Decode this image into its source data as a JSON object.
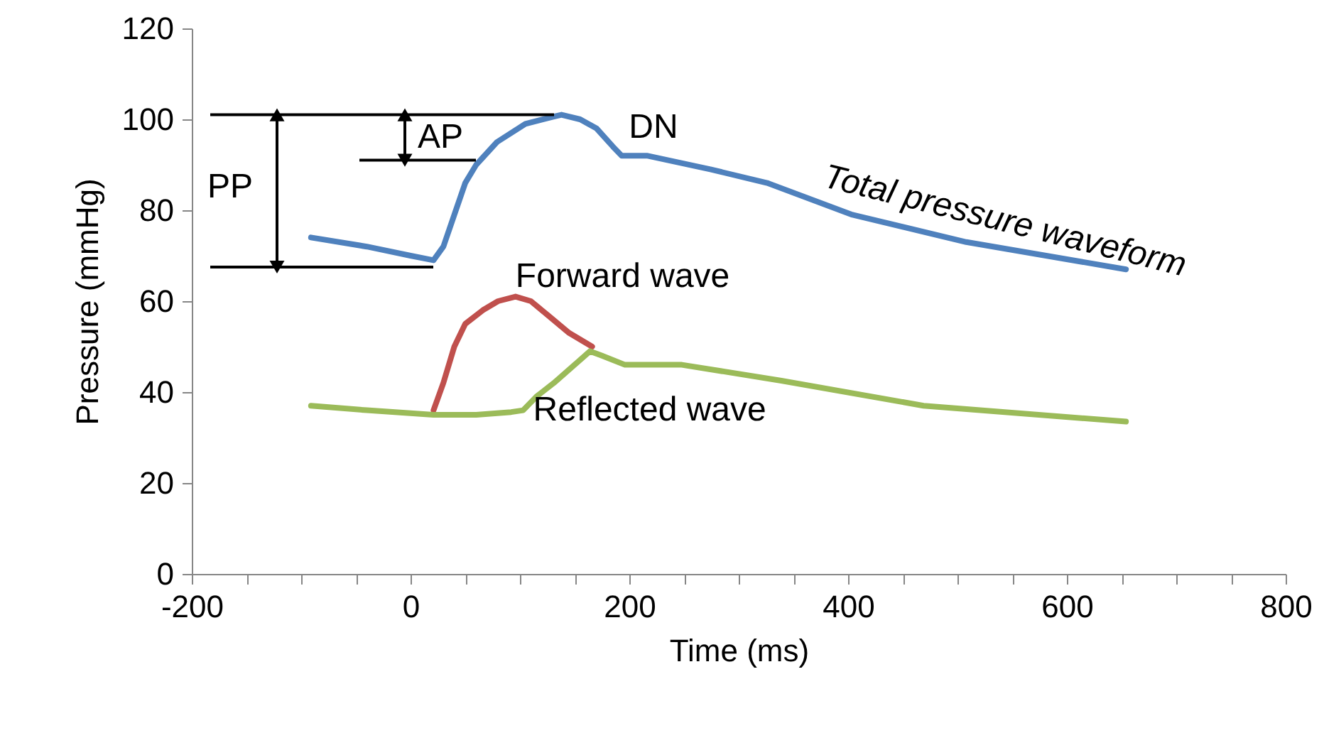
{
  "chart_data": {
    "type": "line",
    "xlabel": "Time (ms)",
    "ylabel": "Pressure (mmHg)",
    "xlim": [
      -200,
      800
    ],
    "ylim": [
      0,
      120
    ],
    "xticks": [
      -200,
      {
        "value": -150,
        "label": null
      },
      {
        "value": -100,
        "label": null
      },
      {
        "value": -50,
        "label": null
      },
      0,
      {
        "value": 50,
        "label": null
      },
      {
        "value": 100,
        "label": null
      },
      {
        "value": 150,
        "label": null
      },
      200,
      {
        "value": 250,
        "label": null
      },
      {
        "value": 300,
        "label": null
      },
      {
        "value": 350,
        "label": null
      },
      400,
      {
        "value": 450,
        "label": null
      },
      {
        "value": 500,
        "label": null
      },
      {
        "value": 550,
        "label": null
      },
      600,
      {
        "value": 650,
        "label": null
      },
      {
        "value": 700,
        "label": null
      },
      {
        "value": 750,
        "label": null
      },
      800
    ],
    "yticks": [
      0,
      20,
      40,
      60,
      80,
      100,
      120
    ],
    "grid": false,
    "marker": "none",
    "line_style": "solid",
    "series": [
      {
        "name": "Total pressure waveform",
        "color": "#4f81bd",
        "x": [
          -91,
          -40,
          0,
          21,
          30,
          40,
          50,
          60,
          79,
          105,
          131,
          138,
          155,
          170,
          185,
          193,
          216,
          274,
          326,
          404,
          508,
          654
        ],
        "values": [
          74,
          72,
          70,
          69,
          72,
          79,
          86,
          90,
          95,
          99,
          100.6,
          101,
          100,
          98,
          94,
          92,
          92,
          89,
          86,
          79,
          73,
          67
        ]
      },
      {
        "name": "Forward wave",
        "color": "#c0504d",
        "x": [
          21,
          30,
          40,
          50,
          66,
          80,
          96,
          110,
          125,
          145,
          166
        ],
        "values": [
          36,
          42,
          50,
          55,
          58,
          60,
          61,
          60,
          57,
          53,
          50
        ]
      },
      {
        "name": "Reflected wave",
        "color": "#9bbb59",
        "x": [
          -91,
          -40,
          21,
          60,
          92,
          103,
          115,
          131,
          150,
          164,
          175,
          196,
          248,
          339,
          469,
          654
        ],
        "values": [
          37,
          36,
          35,
          35,
          35.6,
          36,
          39,
          42,
          46,
          49,
          48,
          46,
          46,
          42.5,
          37,
          33.5
        ]
      }
    ],
    "ref_lines": [
      {
        "axis": "y",
        "value": 101
      },
      {
        "axis": "y",
        "value": 91
      },
      {
        "axis": "y",
        "value": 67.5
      }
    ],
    "annotations": [
      "PP",
      "AP",
      "DN"
    ]
  }
}
